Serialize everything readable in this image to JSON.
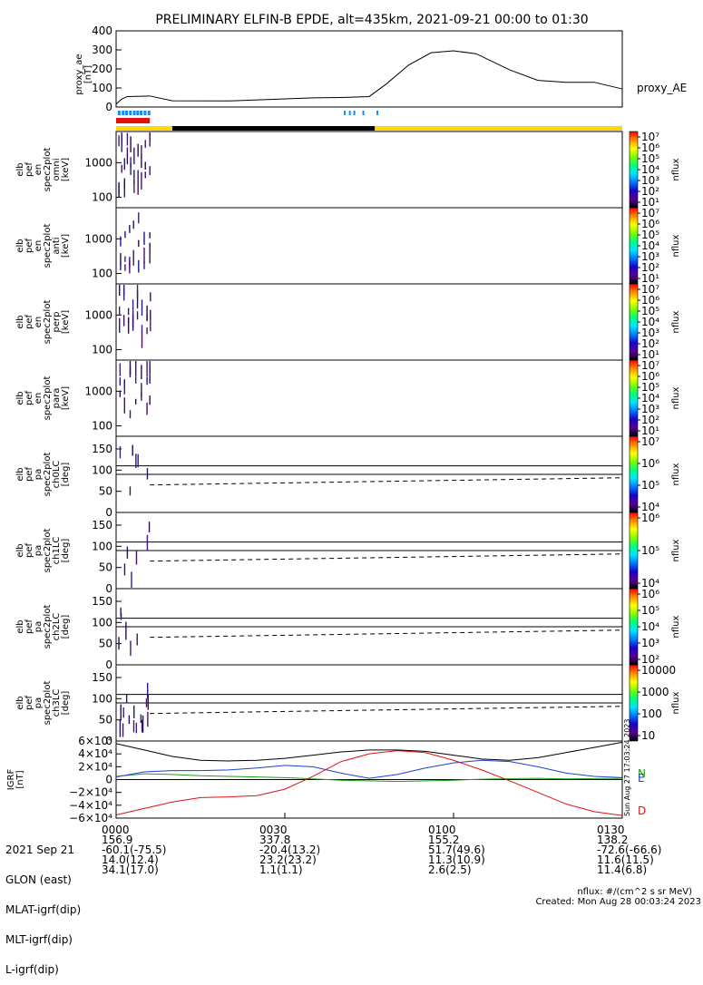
{
  "title": "PRELIMINARY ELFIN-B EPDE, alt=435km, 2021-09-21 00:00 to 01:30",
  "ae_panel": {
    "ylabel_lines": [
      "proxy_ae",
      "[nT]"
    ],
    "yticks": [
      "400",
      "300",
      "200",
      "100",
      "0"
    ],
    "series_label": "proxy_AE"
  },
  "spec_panels": [
    {
      "ylabel_lines": [
        "elb",
        "pef",
        "en",
        "spec2plot",
        "omni",
        "[keV]"
      ],
      "yticks": [
        "1000",
        "100"
      ]
    },
    {
      "ylabel_lines": [
        "elb",
        "pef",
        "en",
        "spec2plot",
        "anti",
        "[keV]"
      ],
      "yticks": [
        "1000",
        "100"
      ]
    },
    {
      "ylabel_lines": [
        "elb",
        "pef",
        "en",
        "spec2plot",
        "perp",
        "[keV]"
      ],
      "yticks": [
        "1000",
        "100"
      ]
    },
    {
      "ylabel_lines": [
        "elb",
        "pef",
        "en",
        "spec2plot",
        "para",
        "[keV]"
      ],
      "yticks": [
        "1000",
        "100"
      ]
    }
  ],
  "pa_panels": [
    {
      "ylabel_lines": [
        "elb",
        "pef",
        "pa",
        "spec2plot",
        "ch0LC",
        "[deg]"
      ],
      "yticks": [
        "150",
        "100",
        "50",
        "0"
      ]
    },
    {
      "ylabel_lines": [
        "elb",
        "pef",
        "pa",
        "spec2plot",
        "ch1LC",
        "[deg]"
      ],
      "yticks": [
        "150",
        "100",
        "50",
        "0"
      ]
    },
    {
      "ylabel_lines": [
        "elb",
        "pef",
        "pa",
        "spec2plot",
        "ch2LC",
        "[deg]"
      ],
      "yticks": [
        "150",
        "100",
        "50",
        "0"
      ]
    },
    {
      "ylabel_lines": [
        "elb",
        "pef",
        "pa",
        "spec2plot",
        "ch3LC",
        "[deg]"
      ],
      "yticks": [
        "150",
        "100",
        "50",
        "0"
      ]
    }
  ],
  "colorbars": [
    {
      "labels": [
        "10⁷",
        "10⁶",
        "10⁵",
        "10⁴",
        "10³",
        "10²",
        "10¹"
      ],
      "unit": "nflux"
    },
    {
      "labels": [
        "10⁷",
        "10⁶",
        "10⁵",
        "10⁴",
        "10³",
        "10²",
        "10¹"
      ],
      "unit": "nflux"
    },
    {
      "labels": [
        "10⁷",
        "10⁶",
        "10⁵",
        "10⁴",
        "10³",
        "10²",
        "10¹"
      ],
      "unit": "nflux"
    },
    {
      "labels": [
        "10⁷",
        "10⁶",
        "10⁵",
        "10⁴",
        "10³",
        "10²",
        "10¹"
      ],
      "unit": "nflux"
    },
    {
      "labels": [
        "10⁷",
        "10⁶",
        "10⁵",
        "10⁴"
      ],
      "unit": "nflux"
    },
    {
      "labels": [
        "10⁶",
        "10⁵",
        "10⁴"
      ],
      "unit": "nflux"
    },
    {
      "labels": [
        "10⁶",
        "10⁵",
        "10⁴",
        "10³",
        "10²"
      ],
      "unit": "nflux"
    },
    {
      "labels": [
        "10000",
        "1000",
        "100",
        "10"
      ],
      "unit": "nflux"
    }
  ],
  "igrf_panel": {
    "ylabel_lines": [
      "IGRF",
      "[nT]"
    ],
    "yticks": [
      "6×10⁴",
      "4×10⁴",
      "2×10⁴",
      "0",
      "−2×10⁴",
      "−4×10⁴",
      "−6×10⁴"
    ],
    "legend": [
      {
        "name": "N",
        "color": "#1b9e1b"
      },
      {
        "name": "E",
        "color": "#1f3fd0"
      },
      {
        "name": "D",
        "color": "#e01010"
      }
    ],
    "side_text": "Sun Aug 27 17:03:24 2023"
  },
  "chart_data": [
    {
      "type": "line",
      "title": "PRELIMINARY ELFIN-B EPDE, alt=435km, 2021-09-21 00:00 to 01:30",
      "ylabel": "proxy_ae [nT]",
      "ylim": [
        0,
        400
      ],
      "x_min": [
        0,
        1,
        2,
        6,
        10,
        20,
        35,
        40,
        45,
        48,
        52,
        56,
        60,
        64,
        70,
        75,
        80,
        85,
        90
      ],
      "series": [
        {
          "name": "proxy_AE",
          "values": [
            15,
            42,
            55,
            58,
            33,
            32,
            48,
            50,
            55,
            120,
            220,
            285,
            295,
            280,
            195,
            140,
            130,
            130,
            95
          ]
        }
      ]
    },
    {
      "type": "line",
      "ylabel": "IGRF [nT]",
      "ylim": [
        -60000,
        60000
      ],
      "x_min": [
        0,
        5,
        10,
        15,
        20,
        25,
        30,
        35,
        40,
        45,
        50,
        55,
        60,
        65,
        70,
        75,
        80,
        85,
        90
      ],
      "series": [
        {
          "name": "N",
          "values": [
            5000,
            9000,
            8000,
            6000,
            5000,
            4000,
            3000,
            1000,
            -1000,
            -2000,
            -3000,
            -2000,
            -1000,
            500,
            1500,
            2000,
            1000,
            1500,
            2000
          ]
        },
        {
          "name": "E",
          "values": [
            4000,
            12000,
            14000,
            14000,
            15000,
            18000,
            22000,
            20000,
            10000,
            2000,
            8000,
            18000,
            26000,
            30000,
            28000,
            20000,
            10000,
            5000,
            3000
          ]
        },
        {
          "name": "D",
          "values": [
            -55000,
            -45000,
            -35000,
            -28000,
            -27000,
            -25000,
            -15000,
            5000,
            28000,
            40000,
            45000,
            42000,
            30000,
            15000,
            -2000,
            -20000,
            -38000,
            -50000,
            -56000
          ]
        },
        {
          "name": "",
          "values": [
            56000,
            46000,
            36000,
            30000,
            29000,
            30000,
            33000,
            38000,
            43000,
            46000,
            46000,
            44000,
            38000,
            32000,
            30000,
            34000,
            42000,
            50000,
            58000
          ]
        }
      ]
    }
  ],
  "spectra": [
    {
      "x_min": [
        0.5,
        1.0,
        1.5,
        2.0,
        2.6,
        3.2,
        3.9,
        4.5,
        5.2,
        6.0
      ],
      "y_log_range": [
        2.0,
        3.6
      ]
    },
    {
      "x_min": [
        0.8,
        1.6,
        2.4,
        3.1,
        4.0,
        5.0,
        6.0
      ],
      "y_log_range": [
        2.0,
        3.6
      ]
    },
    {
      "x_min": [
        0.6,
        1.4,
        2.2,
        3.0,
        3.8,
        4.6,
        5.5,
        6.1
      ],
      "y_log_range": [
        2.0,
        3.6
      ]
    },
    {
      "x_min": [
        0.7,
        1.5,
        2.5,
        3.5,
        4.5,
        5.5,
        6.0
      ],
      "y_log_range": [
        2.0,
        3.6
      ]
    }
  ],
  "pa_ref_lines_deg": [
    90,
    110
  ],
  "pa_dashed": {
    "x_min": [
      6,
      90
    ],
    "y_deg": [
      65,
      82
    ]
  },
  "x_axis": {
    "ticks": [
      "0000",
      "0030",
      "0100",
      "0130"
    ],
    "tick_min": [
      0,
      30,
      60,
      90
    ],
    "x_max": 90
  },
  "ephemeris": {
    "rows": [
      {
        "label": "2021 Sep 21",
        "values": [
          "0000",
          "0030",
          "0100",
          "0130"
        ]
      },
      {
        "label": "GLON (east)",
        "values": [
          "156.9",
          "337.8",
          "155.2",
          "138.2"
        ]
      },
      {
        "label": "MLAT-igrf(dip)",
        "values": [
          "-60.1(-75.5)",
          "-20.4(13.2)",
          "51.7(49.6)",
          "-72.6(-66.6)"
        ]
      },
      {
        "label": "MLT-igrf(dip)",
        "values": [
          "14.0(12.4)",
          "23.2(23.2)",
          "11.3(10.9)",
          "11.6(11.5)"
        ]
      },
      {
        "label": "L-igrf(dip)",
        "values": [
          "34.1(17.0)",
          "1.1(1.1)",
          "2.6(2.5)",
          "11.4(6.8)"
        ]
      }
    ],
    "footer_unit": "nflux: #/(cm^2 s sr MeV)",
    "footer_created": "Created: Mon Aug 28 00:03:24 2023"
  }
}
